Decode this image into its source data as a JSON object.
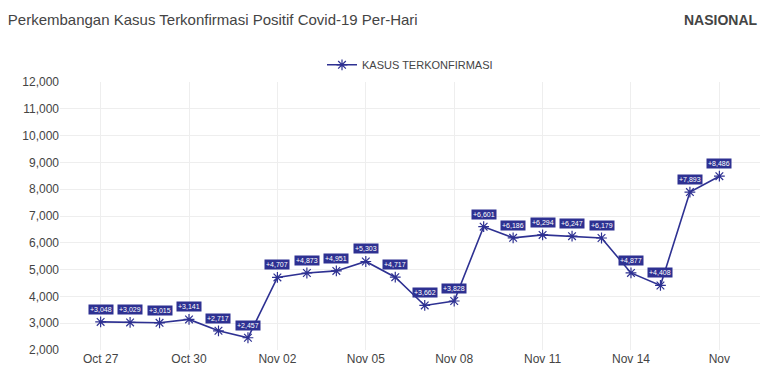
{
  "chart_data": {
    "type": "line",
    "title": "Perkembangan Kasus Terkonfirmasi Positif Covid-19 Per-Hari",
    "annotations": [
      "NASIONAL"
    ],
    "categories": [
      "Oct 27",
      null,
      null,
      "Oct 30",
      null,
      null,
      "Nov 02",
      null,
      null,
      "Nov 05",
      null,
      null,
      "Nov 08",
      null,
      null,
      "Nov 11",
      null,
      null,
      "Nov 14",
      null,
      null,
      "Nov"
    ],
    "series": [
      {
        "name": "KASUS TERKONFIRMASI",
        "color": "#2e3192",
        "marker": "asterisk",
        "values": [
          3048,
          3029,
          3015,
          3141,
          2717,
          2457,
          4707,
          4873,
          4951,
          5303,
          4717,
          3662,
          3828,
          6601,
          6186,
          6294,
          6247,
          6179,
          4877,
          4408,
          7893,
          8486
        ],
        "value_labels": [
          "+3,048",
          "+3,029",
          "+3,015",
          "+3,141",
          "+2,717",
          "+2,457",
          "+4,707",
          "+4,873",
          "+4,951",
          "+5,303",
          "+4,717",
          "+3,662",
          "+3,828",
          "+6,601",
          "+6,186",
          "+6,294",
          "+6,247",
          "+6,179",
          "+4,877",
          "+4,408",
          "+7,893",
          "+8,486"
        ]
      }
    ],
    "ylim": [
      2000,
      12000
    ],
    "yticks": [
      {
        "value": 2000,
        "label": "2,000"
      },
      {
        "value": 3000,
        "label": "3,000"
      },
      {
        "value": 4000,
        "label": "4,000"
      },
      {
        "value": 5000,
        "label": "5,000"
      },
      {
        "value": 6000,
        "label": "6,000"
      },
      {
        "value": 7000,
        "label": "7,000"
      },
      {
        "value": 8000,
        "label": "8,000"
      },
      {
        "value": 9000,
        "label": "9,000"
      },
      {
        "value": 10000,
        "label": "10,000"
      },
      {
        "value": 11000,
        "label": "11,000"
      },
      {
        "value": 12000,
        "label": "12,000"
      }
    ],
    "grid": true,
    "legend": "top",
    "data_labels": true
  }
}
